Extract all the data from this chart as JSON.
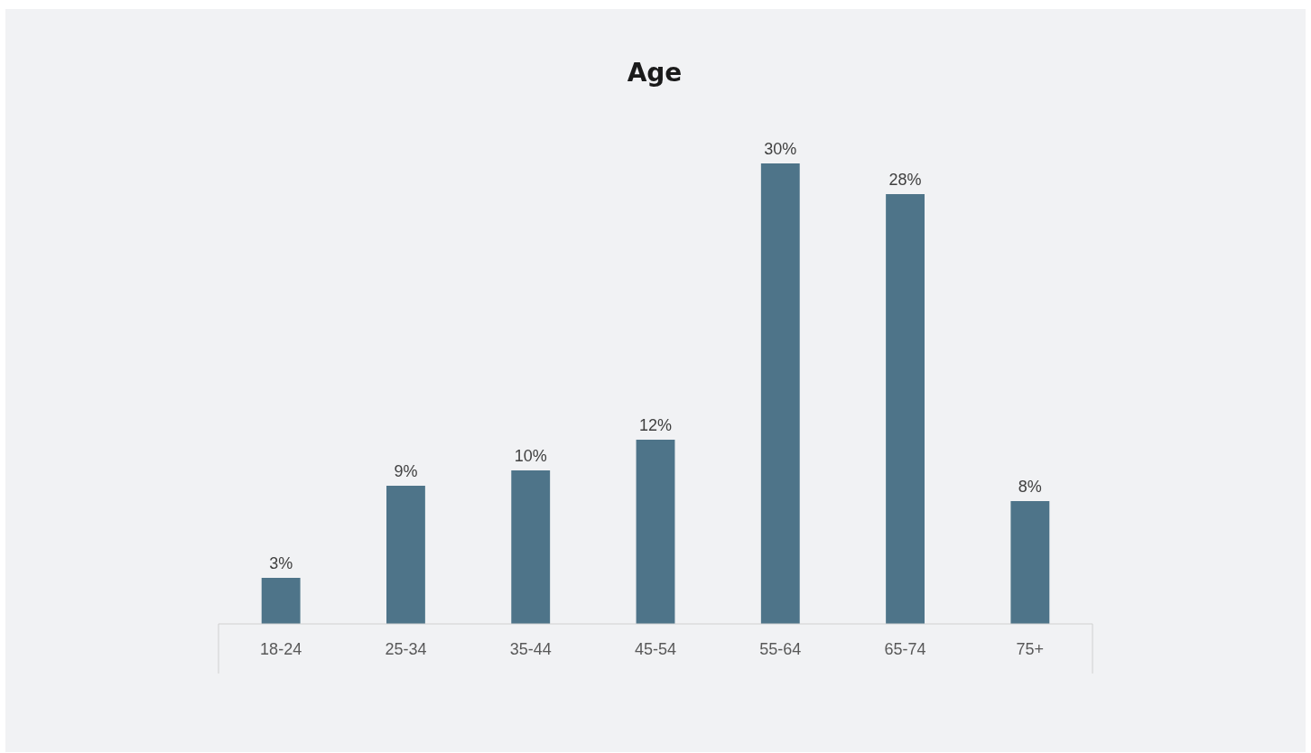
{
  "chart_data": {
    "type": "bar",
    "title": "Age",
    "categories": [
      "18-24",
      "25-34",
      "35-44",
      "45-54",
      "55-64",
      "65-74",
      "75+"
    ],
    "values": [
      3,
      9,
      10,
      12,
      30,
      28,
      8
    ],
    "value_labels": [
      "3%",
      "9%",
      "10%",
      "12%",
      "30%",
      "28%",
      "8%"
    ],
    "color": "#4e7489"
  }
}
